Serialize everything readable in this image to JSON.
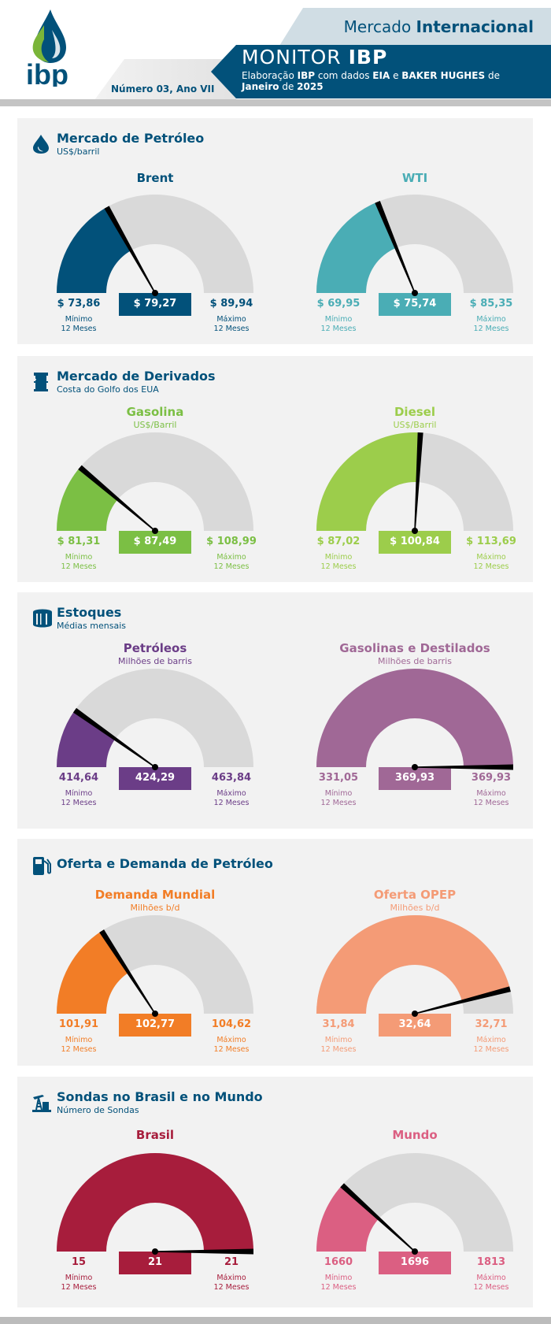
{
  "header": {
    "mercado_prefix": "Mercado",
    "mercado_bold": "Internacional",
    "monitor_prefix": "MONITOR",
    "monitor_bold": "IBP",
    "subtitle": {
      "p1": "Elaboração ",
      "b1": "IBP",
      "p2": " com dados ",
      "b2": "EIA",
      "p3": " e ",
      "b3": "BAKER HUGHES",
      "p4": " de",
      "b4": "Janeiro",
      "p5": " de ",
      "b5": "2025"
    },
    "issue": "Número 03, Ano VII",
    "logo_text": "ibp",
    "colors": {
      "brand_blue": "#02517a",
      "logo_green": "#7ab539"
    }
  },
  "gauge_common": {
    "min_label": "Mínimo",
    "max_label": "Máximo",
    "period": "12 Meses",
    "track_color": "#d9d9d9"
  },
  "sections": [
    {
      "title": "Mercado de Petróleo",
      "subtitle": "US$/barril",
      "icon": "oil-drop-icon",
      "gauges": [
        {
          "name": "Brent",
          "unit": "",
          "color": "#02517a",
          "value": 79.27,
          "min": 73.86,
          "max": 89.94,
          "value_label": "$ 79,27",
          "min_label": "$ 73,86",
          "max_label": "$ 89,94"
        },
        {
          "name": "WTI",
          "unit": "",
          "color": "#4aadb5",
          "value": 75.74,
          "min": 69.95,
          "max": 85.35,
          "value_label": "$ 75,74",
          "min_label": "$ 69,95",
          "max_label": "$ 85,35"
        }
      ]
    },
    {
      "title": "Mercado de Derivados",
      "subtitle": "Costa do Golfo dos EUA",
      "icon": "barrel-icon",
      "gauges": [
        {
          "name": "Gasolina",
          "unit": "US$/Barril",
          "color": "#7bbf44",
          "value": 87.49,
          "min": 81.31,
          "max": 108.99,
          "value_label": "$ 87,49",
          "min_label": "$ 81,31",
          "max_label": "$ 108,99"
        },
        {
          "name": "Diesel",
          "unit": "US$/Barril",
          "color": "#9ccd4b",
          "value": 100.84,
          "min": 87.02,
          "max": 113.69,
          "value_label": "$ 100,84",
          "min_label": "$ 87,02",
          "max_label": "$ 113,69"
        }
      ]
    },
    {
      "title": "Estoques",
      "subtitle": "Médias mensais",
      "icon": "storage-tank-icon",
      "gauges": [
        {
          "name": "Petróleos",
          "unit": "Milhões de barris",
          "color": "#6b3d87",
          "value": 424.29,
          "min": 414.64,
          "max": 463.84,
          "value_label": "424,29",
          "min_label": "414,64",
          "max_label": "463,84"
        },
        {
          "name": "Gasolinas e Destilados",
          "unit": "Milhões de barris",
          "color": "#a06896",
          "value": 369.93,
          "min": 331.05,
          "max": 369.93,
          "value_label": "369,93",
          "min_label": "331,05",
          "max_label": "369,93"
        }
      ]
    },
    {
      "title": "Oferta e Demanda de Petróleo",
      "subtitle": "",
      "icon": "fuel-pump-icon",
      "gauges": [
        {
          "name": "Demanda Mundial",
          "unit": "Milhões b/d",
          "color": "#f27d26",
          "value": 102.77,
          "min": 101.91,
          "max": 104.62,
          "value_label": "102,77",
          "min_label": "101,91",
          "max_label": "104,62"
        },
        {
          "name": "Oferta OPEP",
          "unit": "Milhões b/d",
          "color": "#f49b76",
          "value": 32.64,
          "min": 31.84,
          "max": 32.71,
          "value_label": "32,64",
          "min_label": "31,84",
          "max_label": "32,71"
        }
      ]
    },
    {
      "title": "Sondas no Brasil e no Mundo",
      "subtitle": "Número de Sondas",
      "icon": "oil-rig-icon",
      "gauges": [
        {
          "name": "Brasil",
          "unit": "",
          "color": "#a71d3c",
          "value": 21,
          "min": 15,
          "max": 21,
          "value_label": "21",
          "min_label": "15",
          "max_label": "21"
        },
        {
          "name": "Mundo",
          "unit": "",
          "color": "#db5f82",
          "value": 1696,
          "min": 1660,
          "max": 1813,
          "value_label": "1696",
          "min_label": "1660",
          "max_label": "1813"
        }
      ]
    }
  ]
}
